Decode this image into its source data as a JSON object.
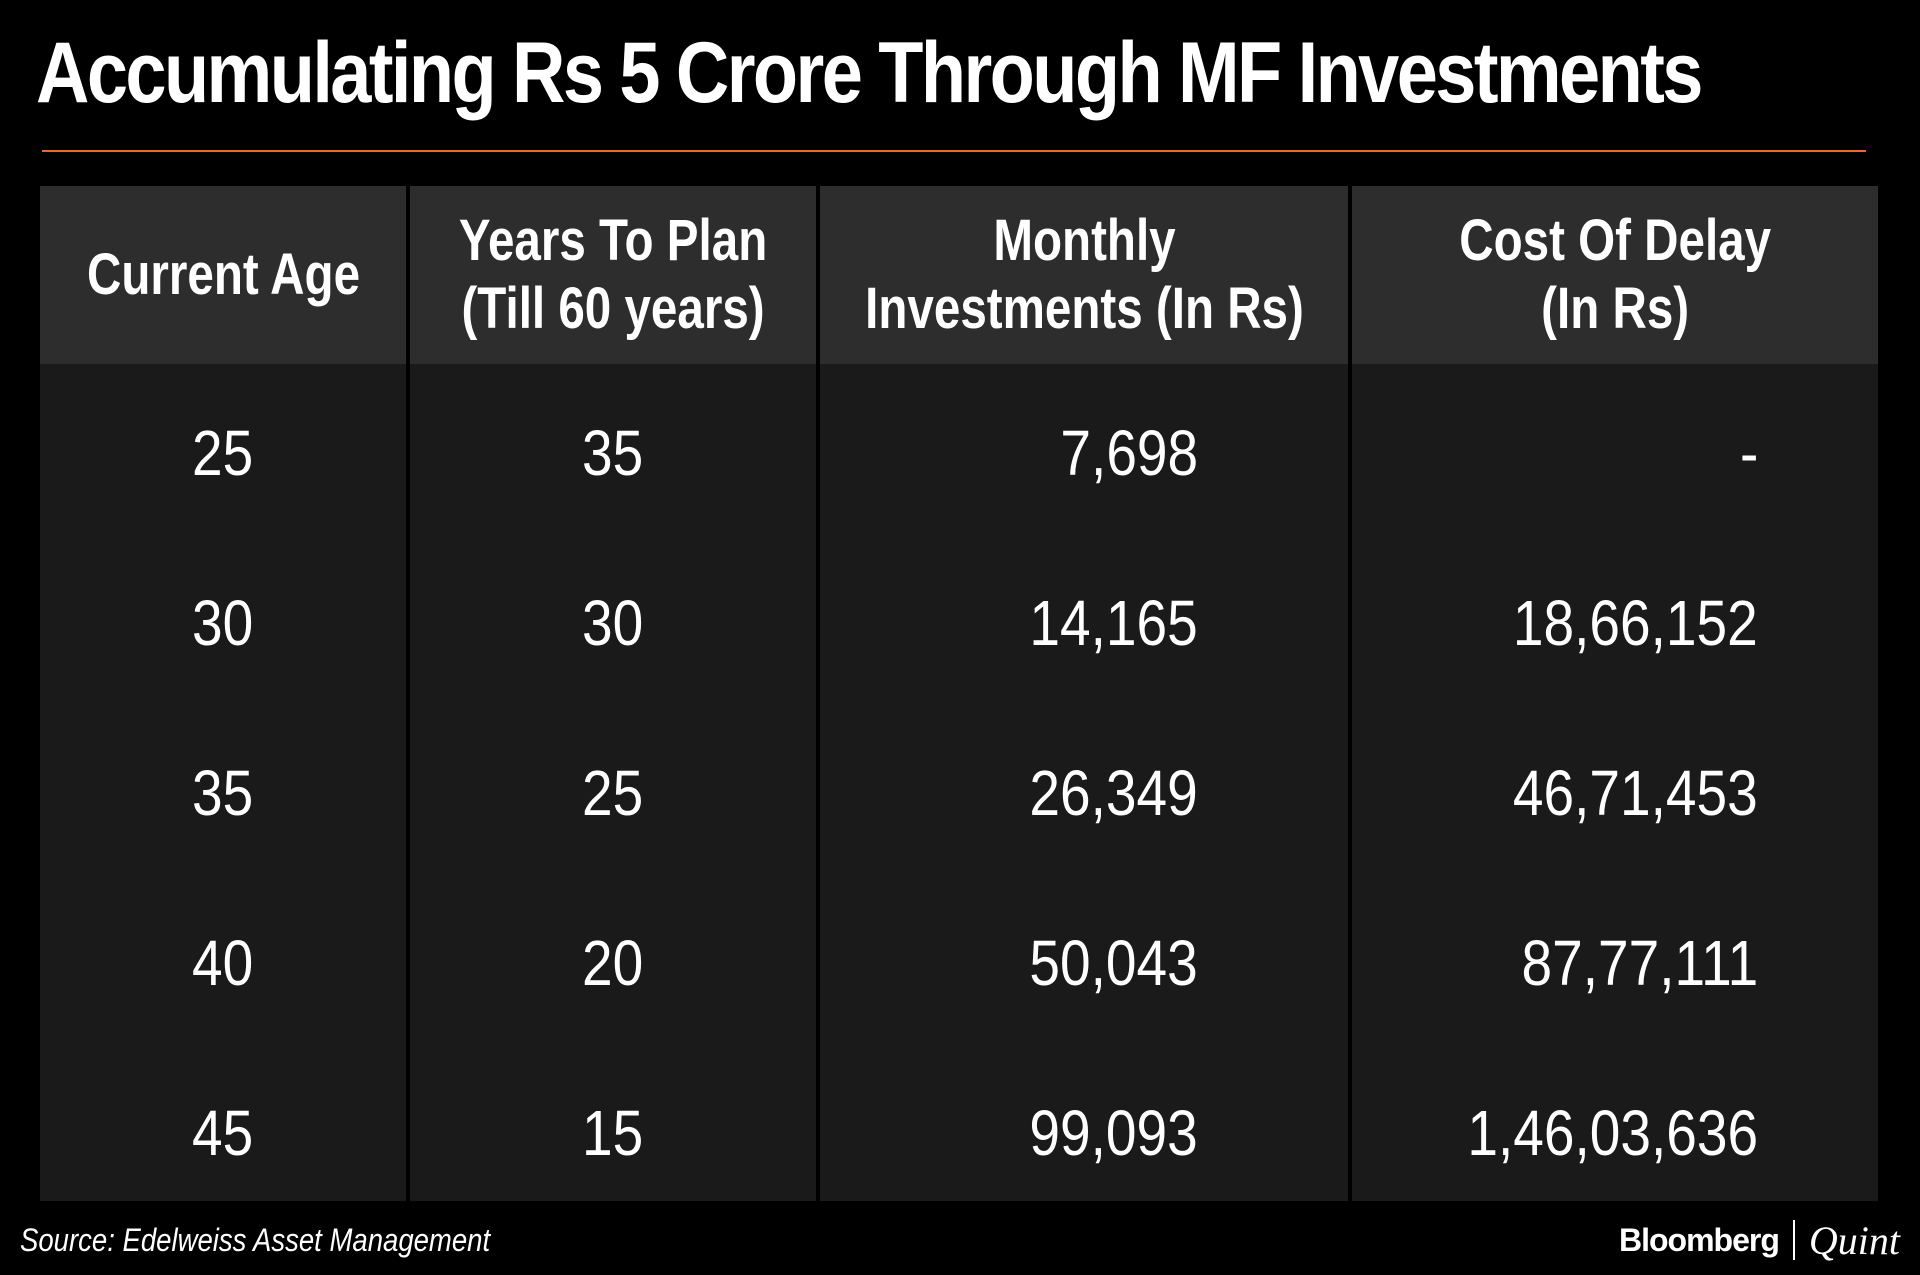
{
  "title": "Accumulating Rs 5 Crore Through MF Investments",
  "colors": {
    "background": "#000000",
    "header_cell": "#2d2d2d",
    "body_cell": "#1a1a1a",
    "accent_line": "#e8692a",
    "text": "#ffffff"
  },
  "chart_data": {
    "type": "table",
    "title": "Accumulating Rs 5 Crore Through MF Investments",
    "columns": [
      [
        "Current Age"
      ],
      [
        "Years To Plan",
        "(Till 60 years)"
      ],
      [
        "Monthly",
        "Investments (In Rs)"
      ],
      [
        "Cost Of Delay",
        "(In Rs)"
      ]
    ],
    "rows": [
      [
        "25",
        "35",
        "7,698",
        "-"
      ],
      [
        "30",
        "30",
        "14,165",
        "18,66,152"
      ],
      [
        "35",
        "25",
        "26,349",
        "46,71,453"
      ],
      [
        "40",
        "20",
        "50,043",
        "87,77,111"
      ],
      [
        "45",
        "15",
        "99,093",
        "1,46,03,636"
      ]
    ]
  },
  "footer": {
    "source": "Source: Edelweiss Asset Management",
    "brand_left": "Bloomberg",
    "brand_right": "Quint"
  }
}
